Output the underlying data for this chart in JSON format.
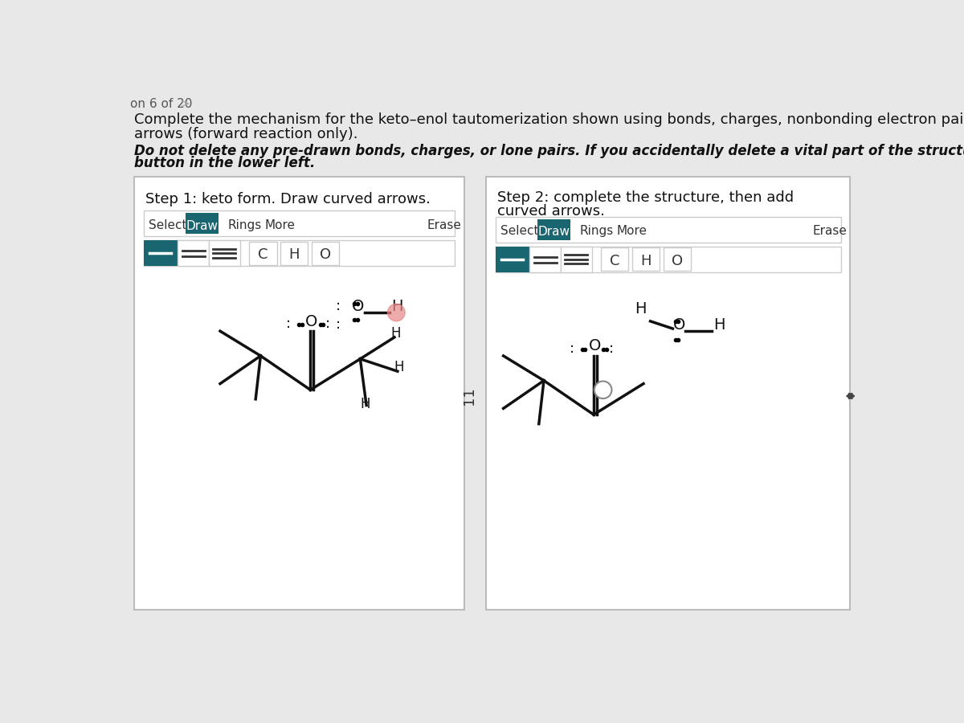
{
  "page_label": "on 6 of 20",
  "title_line1": "Complete the mechanism for the keto–enol tautomerization shown using bonds, charges, nonbonding electron pairs, and curved",
  "title_line2": "arrows (forward reaction only).",
  "italic_line1": "Do not delete any pre-drawn bonds, charges, or lone pairs. If you accidentally delete a vital part of the structure, click the undo",
  "italic_line2": "button in the lower left.",
  "step1_title": "Step 1: keto form. Draw curved arrows.",
  "step2_title_1": "Step 2: complete the structure, then add",
  "step2_title_2": "curved arrows.",
  "bg_color": "#e8e8e8",
  "panel_bg": "#f5f5f5",
  "draw_btn_color": "#1a6670",
  "toolbar_border": "#cccccc"
}
